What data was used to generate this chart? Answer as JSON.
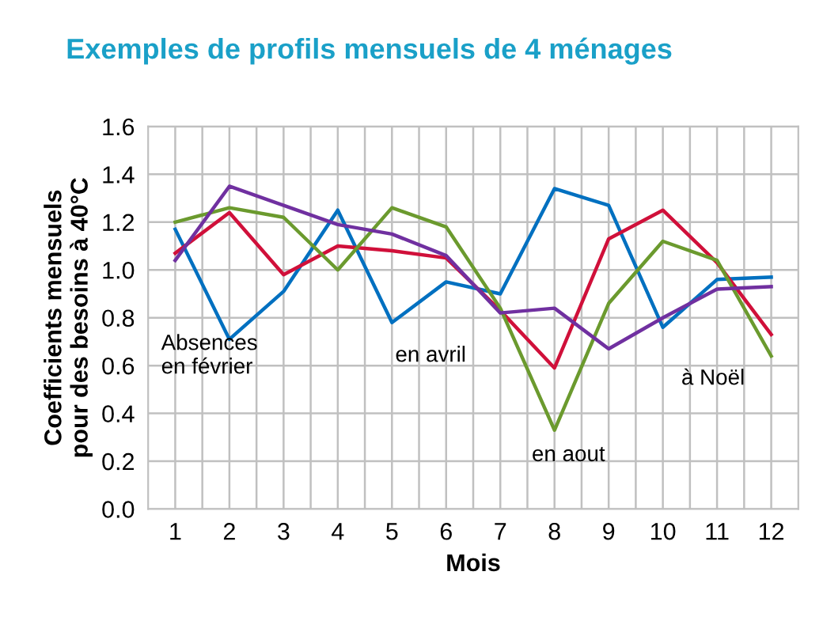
{
  "chart_data": {
    "type": "line",
    "title": "Exemples de profils mensuels de 4 ménages",
    "xlabel": "Mois",
    "ylabel": "Coefficients mensuels\npour des besoins à 40°C",
    "categories": [
      "1",
      "2",
      "3",
      "4",
      "5",
      "6",
      "7",
      "8",
      "9",
      "10",
      "11",
      "12"
    ],
    "series": [
      {
        "color": "#0070c0",
        "values": [
          1.17,
          0.71,
          0.91,
          1.25,
          0.78,
          0.95,
          0.9,
          1.34,
          1.27,
          0.76,
          0.96,
          0.97
        ]
      },
      {
        "color": "#d0103a",
        "values": [
          1.07,
          1.24,
          0.98,
          1.1,
          1.08,
          1.05,
          0.83,
          0.59,
          1.13,
          1.25,
          1.03,
          0.73
        ]
      },
      {
        "color": "#6b9a2e",
        "values": [
          1.2,
          1.26,
          1.22,
          1.0,
          1.26,
          1.18,
          0.84,
          0.33,
          0.86,
          1.12,
          1.04,
          0.64
        ]
      },
      {
        "color": "#7030a0",
        "values": [
          1.04,
          1.35,
          1.27,
          1.19,
          1.15,
          1.06,
          0.82,
          0.84,
          0.67,
          0.8,
          0.92,
          0.93
        ]
      }
    ],
    "ylim": [
      0,
      1.6
    ],
    "yticks": [
      {
        "value": 0,
        "label": "0.0"
      },
      {
        "value": 0.2,
        "label": "0.2"
      },
      {
        "value": 0.4,
        "label": "0.4"
      },
      {
        "value": 0.6,
        "label": "0.6"
      },
      {
        "value": 0.8,
        "label": "0.8"
      },
      {
        "value": 1.0,
        "label": "1.0"
      },
      {
        "value": 1.2,
        "label": "1.2"
      },
      {
        "value": 1.4,
        "label": "1.4"
      },
      {
        "value": 1.6,
        "label": "1.6"
      }
    ],
    "grid": true,
    "legend": false,
    "marker": "none",
    "line_style": "solid",
    "annotations": [
      "Absences\nen février",
      "en avril",
      "en aout",
      "à Noël"
    ]
  }
}
